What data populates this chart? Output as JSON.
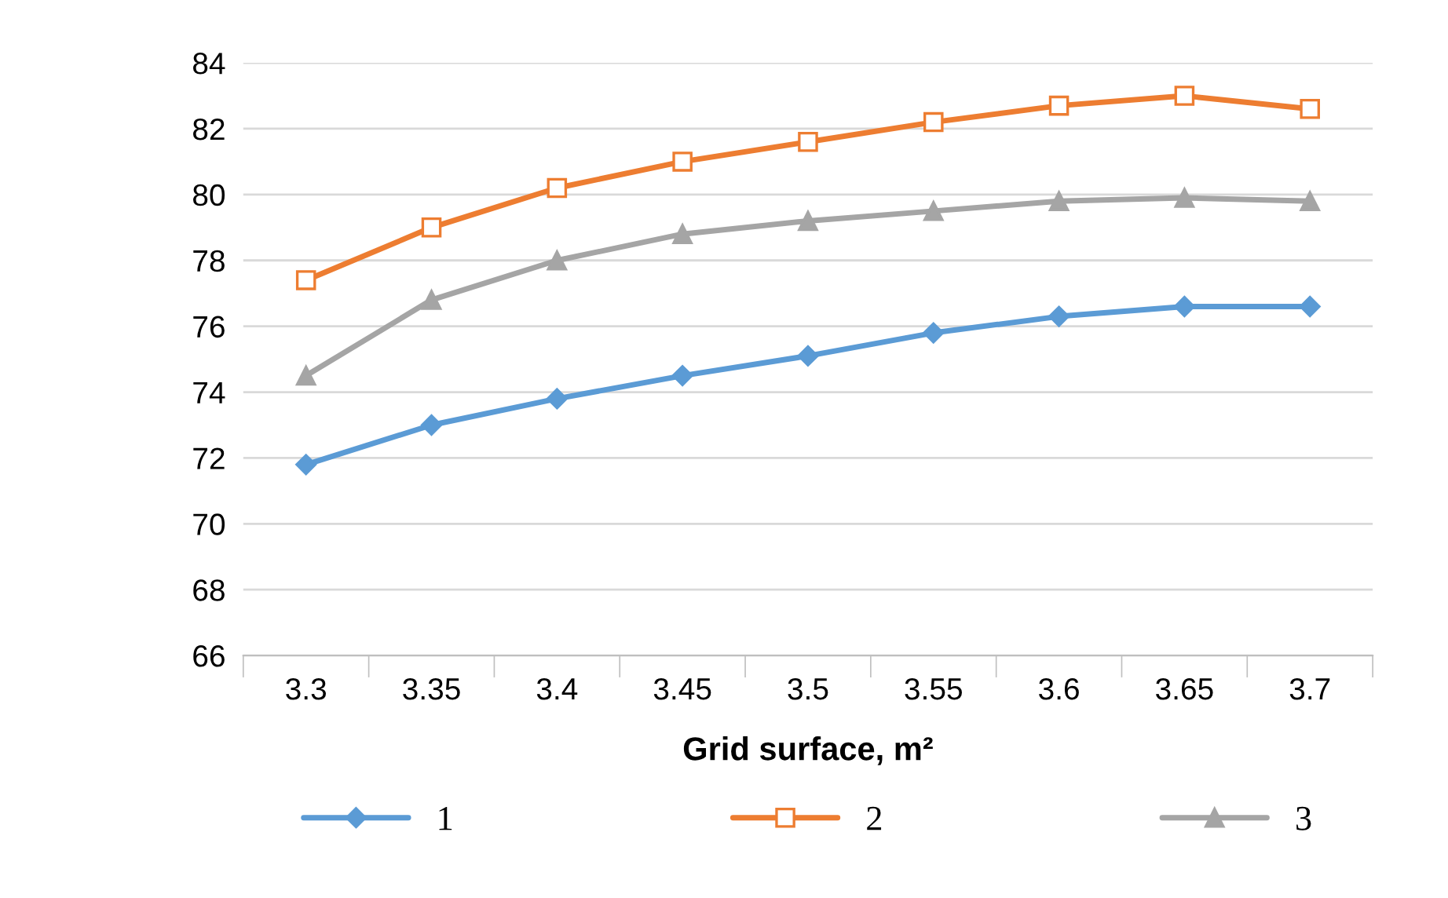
{
  "chart_data": {
    "type": "line",
    "xlabel": "Grid surface, m²",
    "categories": [
      "3.3",
      "3.35",
      "3.4",
      "3.45",
      "3.5",
      "3.55",
      "3.6",
      "3.65",
      "3.7"
    ],
    "series": [
      {
        "name": "1",
        "color": "#5b9bd5",
        "marker": "diamond",
        "values": [
          71.8,
          73.0,
          73.8,
          74.5,
          75.1,
          75.8,
          76.3,
          76.6,
          76.6
        ]
      },
      {
        "name": "2",
        "color": "#ed7d31",
        "marker": "square",
        "values": [
          77.4,
          79.0,
          80.2,
          81.0,
          81.6,
          82.2,
          82.7,
          83.0,
          82.6
        ]
      },
      {
        "name": "3",
        "color": "#a5a5a5",
        "marker": "triangle",
        "values": [
          74.5,
          76.8,
          78.0,
          78.8,
          79.2,
          79.5,
          79.8,
          79.9,
          79.8
        ]
      }
    ],
    "ylim": [
      66,
      84
    ],
    "yticks": [
      66,
      68,
      70,
      72,
      74,
      76,
      78,
      80,
      82,
      84
    ],
    "grid": "y",
    "legend": "bottom"
  }
}
